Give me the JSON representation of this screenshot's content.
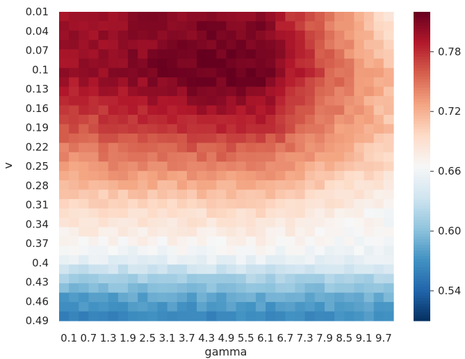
{
  "chart_data": {
    "type": "heatmap",
    "title": "",
    "xlabel": "gamma",
    "ylabel": "v",
    "x_tick_labels": [
      "0.1",
      "0.7",
      "1.3",
      "1.9",
      "2.5",
      "3.1",
      "3.7",
      "4.3",
      "4.9",
      "5.5",
      "6.1",
      "6.7",
      "7.3",
      "7.9",
      "8.5",
      "9.1",
      "9.7"
    ],
    "y_tick_labels": [
      "0.01",
      "0.04",
      "0.07",
      "0.1",
      "0.13",
      "0.16",
      "0.19",
      "0.22",
      "0.25",
      "0.28",
      "0.31",
      "0.34",
      "0.37",
      "0.4",
      "0.43",
      "0.46",
      "0.49"
    ],
    "gamma_range": [
      0.1,
      10.0
    ],
    "v_range": [
      0.01,
      0.49
    ],
    "n_gamma": 34,
    "n_v": 33,
    "colormap": "RdBu_r",
    "vmin": 0.51,
    "vmax": 0.82,
    "colorbar_ticks": [
      0.54,
      0.6,
      0.66,
      0.72,
      0.78
    ],
    "colorbar_tick_labels": [
      "0.54",
      "0.60",
      "0.66",
      "0.72",
      "0.78"
    ],
    "value_profile_by_v": [
      {
        "v": 0.01,
        "value": 0.8
      },
      {
        "v": 0.1,
        "value": 0.8
      },
      {
        "v": 0.19,
        "value": 0.77
      },
      {
        "v": 0.25,
        "value": 0.74
      },
      {
        "v": 0.31,
        "value": 0.7
      },
      {
        "v": 0.37,
        "value": 0.67
      },
      {
        "v": 0.4,
        "value": 0.65
      },
      {
        "v": 0.43,
        "value": 0.61
      },
      {
        "v": 0.46,
        "value": 0.58
      },
      {
        "v": 0.49,
        "value": 0.56
      }
    ],
    "peak_gamma": 5.0,
    "peak_value": 0.815,
    "notes_visible": "dark red maximum near gamma 5, small v; values fall toward large gamma at small v and toward large v everywhere"
  }
}
